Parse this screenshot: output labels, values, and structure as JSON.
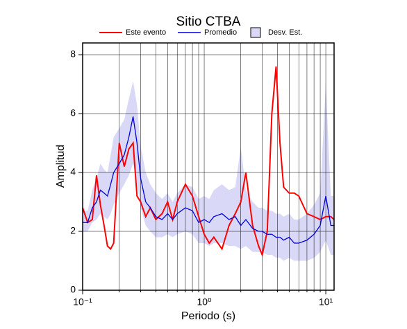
{
  "chart_data": {
    "type": "line",
    "title": "Sitio CTBA",
    "xlabel": "Periodo (s)",
    "ylabel": "Amplitud",
    "xscale": "log",
    "xlim": [
      0.1,
      11.7
    ],
    "ylim": [
      0,
      8.4
    ],
    "grid": true,
    "xticks": [
      {
        "value": 0.1,
        "label": "10⁻¹"
      },
      {
        "value": 1,
        "label": "10⁰"
      },
      {
        "value": 10,
        "label": "10¹"
      }
    ],
    "xminorticks": [
      0.2,
      0.3,
      0.4,
      0.5,
      0.6,
      0.7,
      0.8,
      0.9,
      2,
      3,
      4,
      5,
      6,
      7,
      8,
      9
    ],
    "yticks": [
      0,
      2,
      4,
      6,
      8
    ],
    "x": [
      0.1,
      0.11,
      0.12,
      0.13,
      0.14,
      0.15,
      0.16,
      0.17,
      0.18,
      0.2,
      0.22,
      0.24,
      0.26,
      0.28,
      0.3,
      0.33,
      0.36,
      0.4,
      0.45,
      0.5,
      0.55,
      0.6,
      0.7,
      0.8,
      0.9,
      1.0,
      1.1,
      1.2,
      1.4,
      1.6,
      1.8,
      2.0,
      2.2,
      2.5,
      2.8,
      3.0,
      3.3,
      3.6,
      3.9,
      4.2,
      4.5,
      5,
      5.5,
      6,
      7,
      8,
      9,
      10,
      11,
      11.7
    ],
    "series": [
      {
        "name": "Este evento",
        "color": "#ff0000",
        "values": [
          2.8,
          2.3,
          2.4,
          3.9,
          2.9,
          2.2,
          1.5,
          1.4,
          1.6,
          5.0,
          4.2,
          4.8,
          5.0,
          3.2,
          3.0,
          2.5,
          2.8,
          2.4,
          2.6,
          3.0,
          2.4,
          3.0,
          3.6,
          3.2,
          2.5,
          1.9,
          1.6,
          1.8,
          1.4,
          2.2,
          2.6,
          3.0,
          4.0,
          2.2,
          1.5,
          1.2,
          2.0,
          6.0,
          7.6,
          5.0,
          3.5,
          3.3,
          3.3,
          3.2,
          2.6,
          2.5,
          2.4,
          2.5,
          2.5,
          2.4
        ]
      },
      {
        "name": "Promedio",
        "color": "#0000dd",
        "values": [
          2.3,
          2.3,
          2.8,
          3.0,
          3.4,
          3.3,
          3.2,
          3.6,
          4.0,
          4.3,
          4.6,
          5.2,
          5.9,
          5.0,
          3.8,
          3.0,
          2.8,
          2.5,
          2.4,
          2.6,
          2.4,
          2.6,
          2.8,
          2.7,
          2.3,
          2.4,
          2.3,
          2.5,
          2.6,
          2.4,
          2.5,
          2.2,
          2.4,
          2.1,
          2.0,
          2.0,
          1.9,
          1.9,
          1.8,
          1.8,
          1.7,
          1.8,
          1.6,
          1.6,
          1.7,
          1.9,
          2.2,
          3.2,
          2.2,
          2.2
        ]
      },
      {
        "name": "Desv. Est.",
        "color": "#d9d9f7",
        "lower": [
          2.0,
          2.0,
          2.3,
          2.4,
          2.6,
          2.5,
          2.4,
          2.6,
          2.9,
          3.3,
          3.6,
          3.9,
          4.3,
          3.7,
          2.8,
          2.2,
          2.0,
          1.8,
          1.8,
          1.9,
          1.8,
          1.9,
          2.0,
          1.9,
          1.6,
          1.6,
          1.5,
          1.6,
          1.6,
          1.5,
          1.5,
          1.4,
          1.5,
          1.3,
          1.3,
          1.3,
          1.2,
          1.2,
          1.1,
          1.1,
          1.0,
          1.1,
          1.0,
          1.0,
          1.0,
          1.1,
          1.3,
          1.7,
          1.2,
          1.2
        ],
        "upper": [
          2.7,
          2.7,
          3.4,
          3.8,
          4.3,
          4.1,
          4.0,
          4.6,
          5.2,
          5.5,
          5.8,
          6.5,
          7.1,
          6.3,
          4.9,
          4.0,
          3.6,
          3.3,
          3.1,
          3.3,
          3.0,
          3.3,
          3.6,
          3.5,
          3.1,
          3.2,
          3.1,
          3.4,
          3.6,
          3.4,
          3.5,
          4.9,
          3.4,
          3.0,
          2.8,
          2.8,
          2.7,
          2.7,
          2.6,
          2.6,
          2.5,
          2.6,
          2.4,
          2.4,
          2.6,
          2.9,
          3.3,
          7.0,
          3.2,
          3.2
        ]
      }
    ]
  }
}
